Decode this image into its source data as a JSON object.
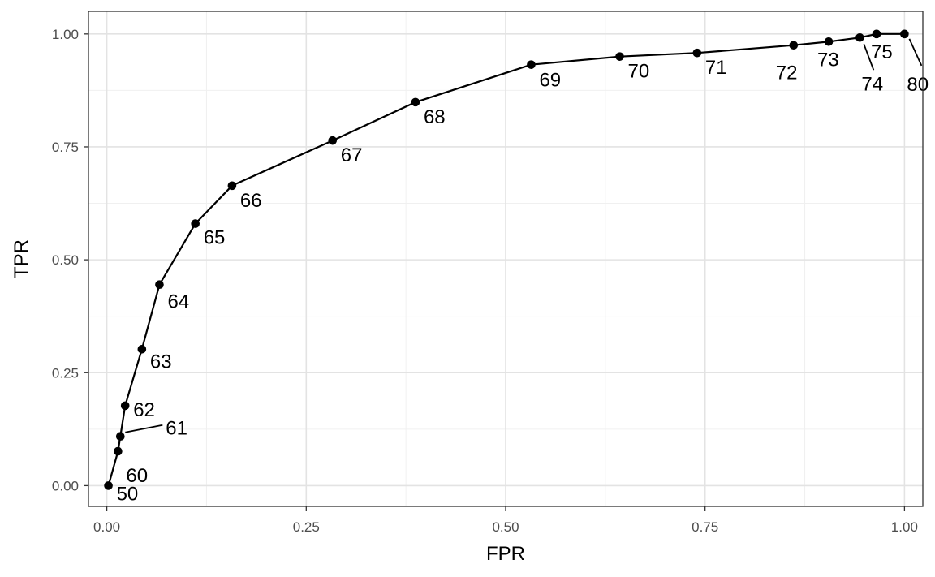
{
  "chart_data": {
    "type": "line",
    "xlabel": "FPR",
    "ylabel": "TPR",
    "xlim": [
      -0.023,
      1.023
    ],
    "ylim": [
      -0.046,
      1.05
    ],
    "xticks": [
      {
        "value": 0,
        "label": "0.00"
      },
      {
        "value": 0.25,
        "label": "0.25"
      },
      {
        "value": 0.5,
        "label": "0.50"
      },
      {
        "value": 0.75,
        "label": "0.75"
      },
      {
        "value": 1,
        "label": "1.00"
      }
    ],
    "yticks": [
      {
        "value": 0,
        "label": "0.00"
      },
      {
        "value": 0.25,
        "label": "0.25"
      },
      {
        "value": 0.5,
        "label": "0.50"
      },
      {
        "value": 0.75,
        "label": "0.75"
      },
      {
        "value": 1,
        "label": "1.00"
      }
    ],
    "grid": true,
    "line_color": "#000000",
    "points": [
      {
        "x": 0.002,
        "y": 0.0,
        "label": "50"
      },
      {
        "x": 0.014,
        "y": 0.076,
        "label": "60"
      },
      {
        "x": 0.017,
        "y": 0.109,
        "label": "61"
      },
      {
        "x": 0.023,
        "y": 0.177,
        "label": "62"
      },
      {
        "x": 0.044,
        "y": 0.302,
        "label": "63"
      },
      {
        "x": 0.066,
        "y": 0.445,
        "label": "64"
      },
      {
        "x": 0.111,
        "y": 0.58,
        "label": "65"
      },
      {
        "x": 0.157,
        "y": 0.664,
        "label": "66"
      },
      {
        "x": 0.283,
        "y": 0.764,
        "label": "67"
      },
      {
        "x": 0.387,
        "y": 0.849,
        "label": "68"
      },
      {
        "x": 0.532,
        "y": 0.932,
        "label": "69"
      },
      {
        "x": 0.643,
        "y": 0.95,
        "label": "70"
      },
      {
        "x": 0.74,
        "y": 0.958,
        "label": "71"
      },
      {
        "x": 0.861,
        "y": 0.975,
        "label": "72"
      },
      {
        "x": 0.905,
        "y": 0.983,
        "label": "73"
      },
      {
        "x": 0.944,
        "y": 0.992,
        "label": "74"
      },
      {
        "x": 0.965,
        "y": 1.0,
        "label": "75"
      },
      {
        "x": 1.0,
        "y": 1.0,
        "label": "80"
      }
    ]
  }
}
